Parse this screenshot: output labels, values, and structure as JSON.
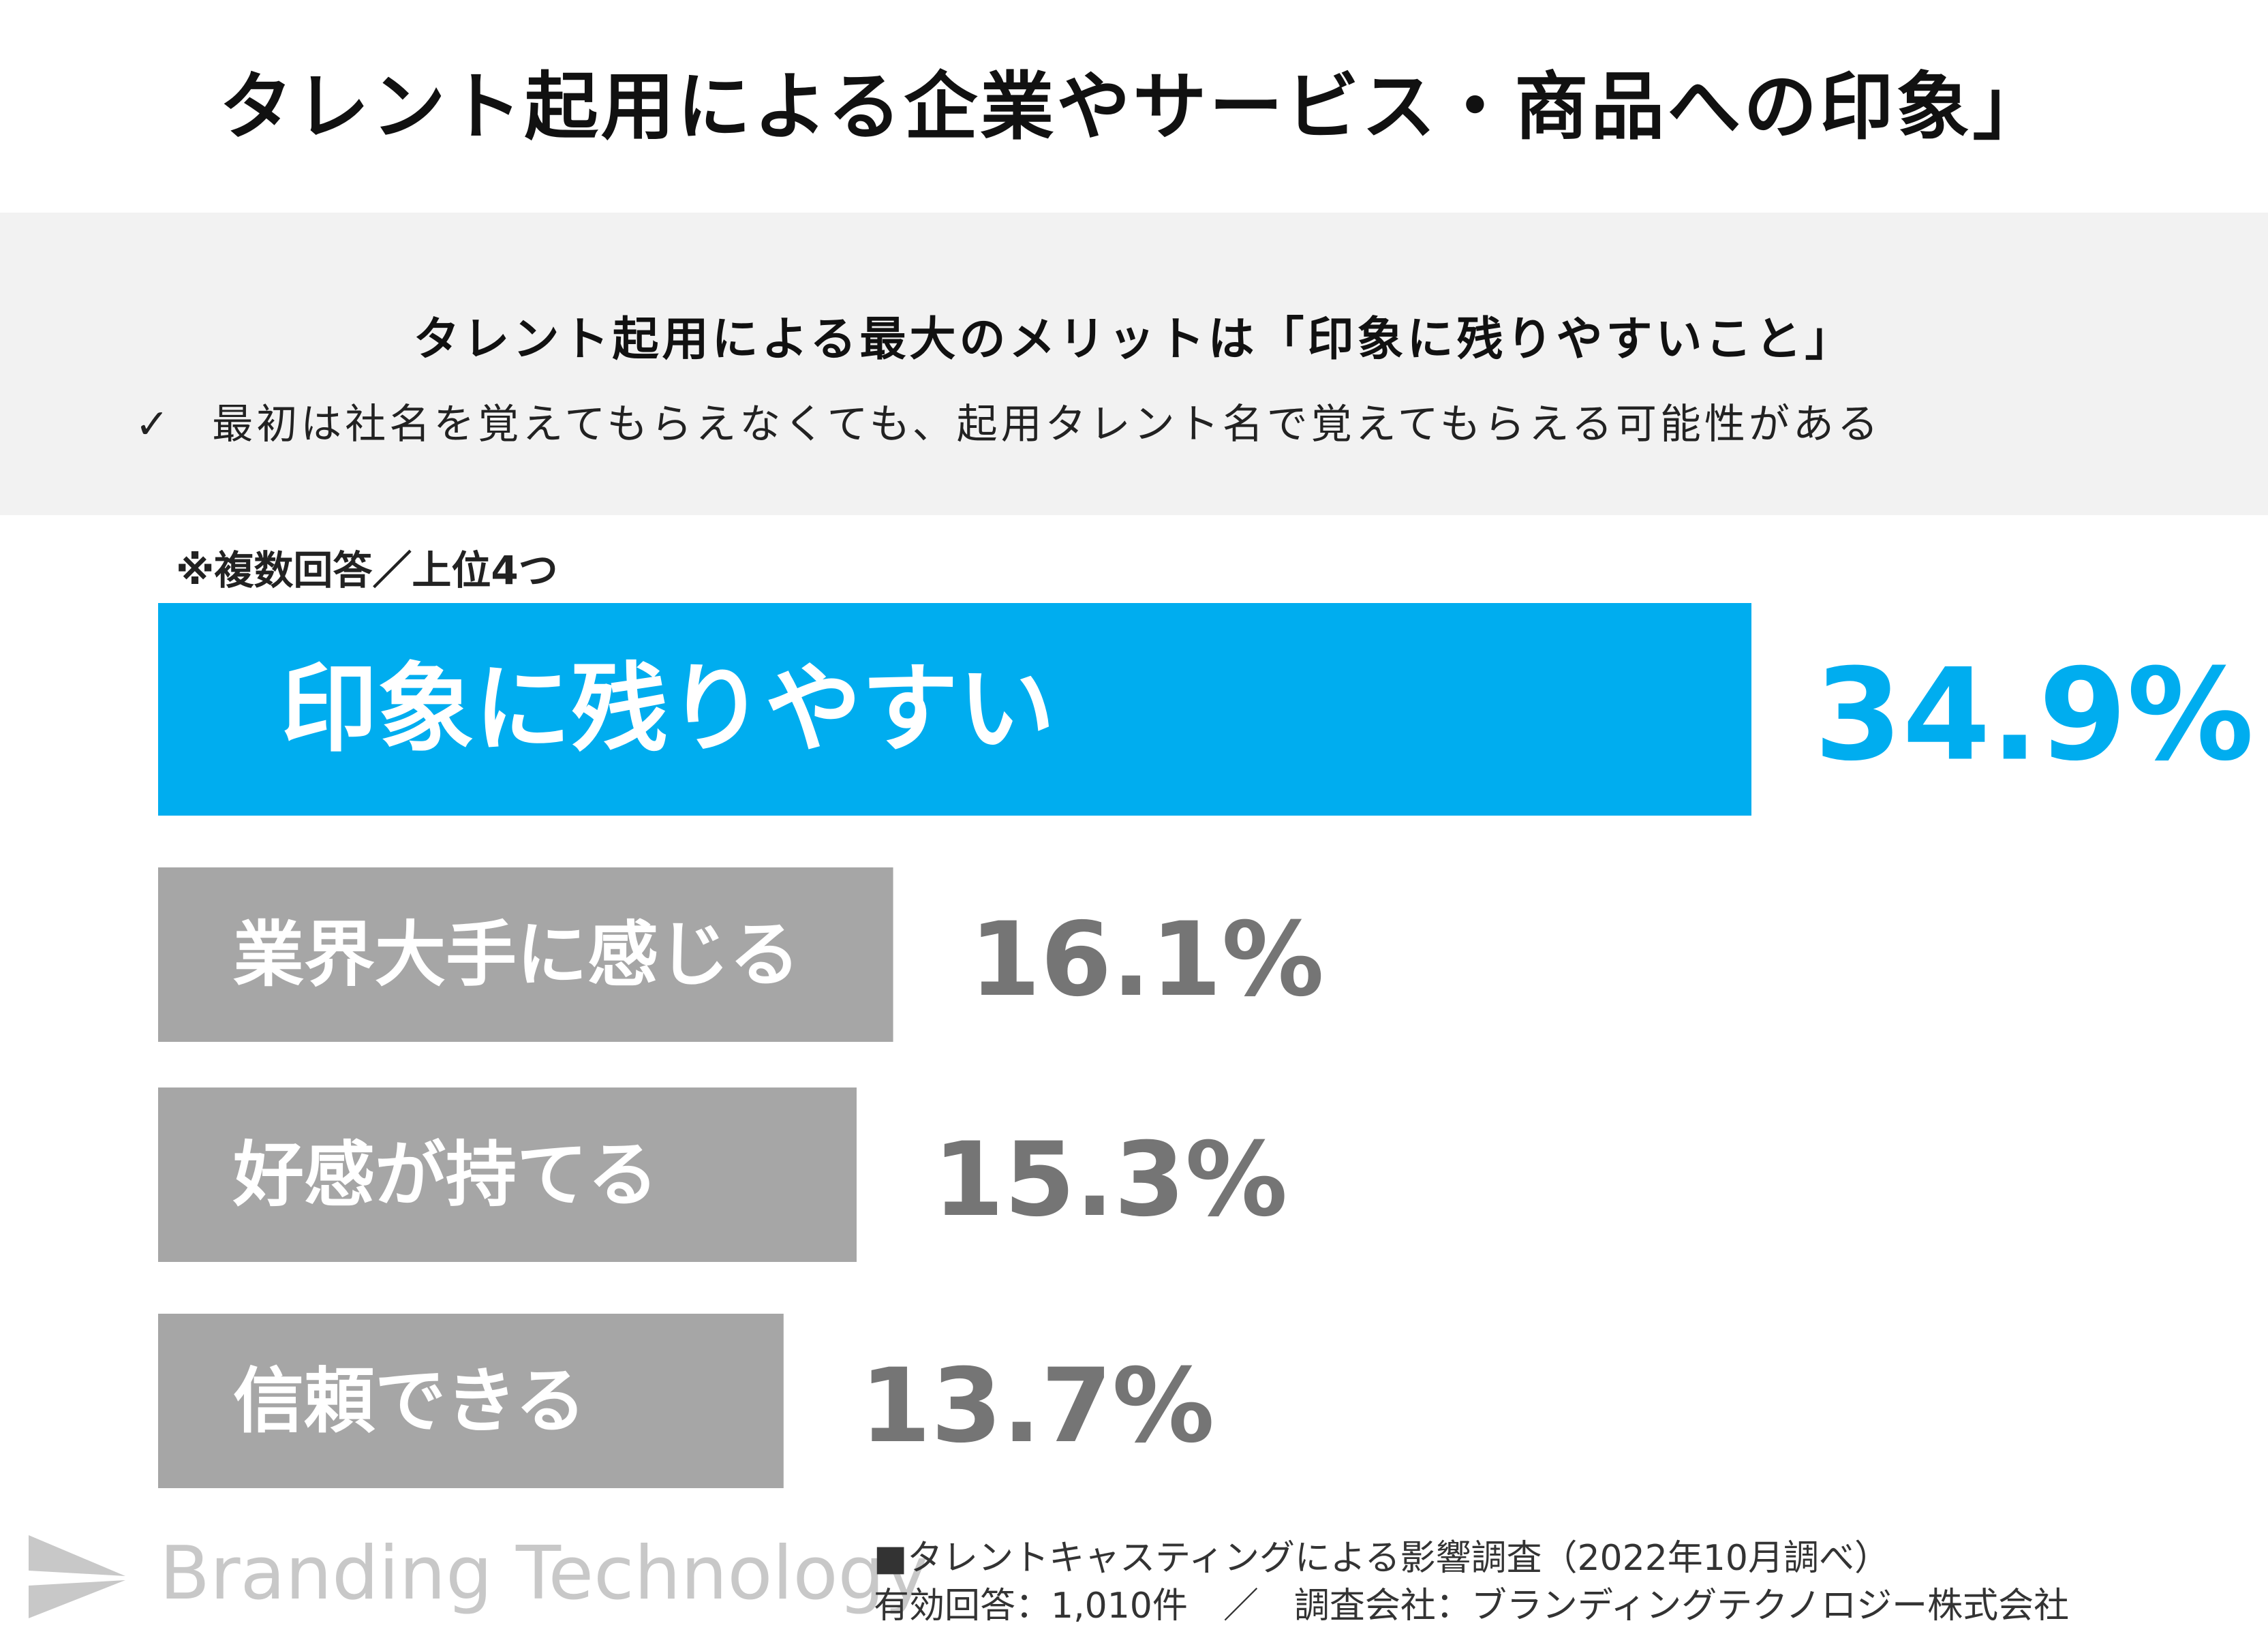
{
  "title": "タレント起用による企業やサービス・商品への印象」",
  "summary": {
    "heading": "タレント起用による最大のメリットは「印象に残りやすいこと」",
    "check_mark": "✓",
    "point": "最初は社名を覚えてもらえなくても、起用タレント名で覚えてもらえる可能性がある"
  },
  "note": "※複数回答／上位4つ",
  "colors": {
    "highlight": "#00adef",
    "bar": "#a6a6a6",
    "value_gray": "#757575"
  },
  "chart_data": {
    "type": "bar",
    "orientation": "horizontal",
    "categories": [
      "印象に残りやすい",
      "業界大手に感じる",
      "好感が持てる",
      "信頼できる"
    ],
    "values": [
      34.9,
      16.1,
      15.3,
      13.7
    ],
    "value_labels": [
      "34.9%",
      "16.1%",
      "15.3%",
      "13.7%"
    ],
    "highlight_index": 0,
    "unit": "%"
  },
  "logo": {
    "text": "Branding Technology"
  },
  "source": {
    "line1": "■タレントキャスティングによる影響調査（2022年10月調べ）",
    "line2": "有効回答：1,010件　／　調査会社：ブランディングテクノロジー株式会社"
  }
}
